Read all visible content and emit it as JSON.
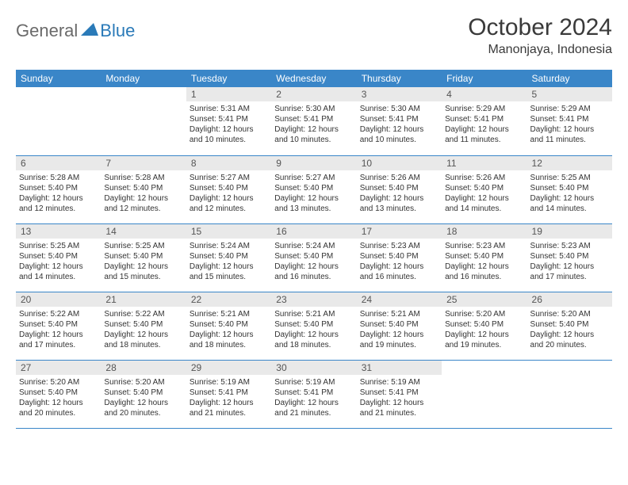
{
  "logo": {
    "general": "General",
    "blue": "Blue"
  },
  "title": "October 2024",
  "location": "Manonjaya, Indonesia",
  "colors": {
    "header_bg": "#3a86c8",
    "header_text": "#ffffff",
    "daynum_bg": "#e9e9e9",
    "row_border": "#3a86c8",
    "logo_gray": "#6a6a6a",
    "logo_blue": "#2a7ab8"
  },
  "weekdays": [
    "Sunday",
    "Monday",
    "Tuesday",
    "Wednesday",
    "Thursday",
    "Friday",
    "Saturday"
  ],
  "weeks": [
    [
      null,
      null,
      {
        "n": "1",
        "sr": "5:31 AM",
        "ss": "5:41 PM",
        "dl": "12 hours and 10 minutes."
      },
      {
        "n": "2",
        "sr": "5:30 AM",
        "ss": "5:41 PM",
        "dl": "12 hours and 10 minutes."
      },
      {
        "n": "3",
        "sr": "5:30 AM",
        "ss": "5:41 PM",
        "dl": "12 hours and 10 minutes."
      },
      {
        "n": "4",
        "sr": "5:29 AM",
        "ss": "5:41 PM",
        "dl": "12 hours and 11 minutes."
      },
      {
        "n": "5",
        "sr": "5:29 AM",
        "ss": "5:41 PM",
        "dl": "12 hours and 11 minutes."
      }
    ],
    [
      {
        "n": "6",
        "sr": "5:28 AM",
        "ss": "5:40 PM",
        "dl": "12 hours and 12 minutes."
      },
      {
        "n": "7",
        "sr": "5:28 AM",
        "ss": "5:40 PM",
        "dl": "12 hours and 12 minutes."
      },
      {
        "n": "8",
        "sr": "5:27 AM",
        "ss": "5:40 PM",
        "dl": "12 hours and 12 minutes."
      },
      {
        "n": "9",
        "sr": "5:27 AM",
        "ss": "5:40 PM",
        "dl": "12 hours and 13 minutes."
      },
      {
        "n": "10",
        "sr": "5:26 AM",
        "ss": "5:40 PM",
        "dl": "12 hours and 13 minutes."
      },
      {
        "n": "11",
        "sr": "5:26 AM",
        "ss": "5:40 PM",
        "dl": "12 hours and 14 minutes."
      },
      {
        "n": "12",
        "sr": "5:25 AM",
        "ss": "5:40 PM",
        "dl": "12 hours and 14 minutes."
      }
    ],
    [
      {
        "n": "13",
        "sr": "5:25 AM",
        "ss": "5:40 PM",
        "dl": "12 hours and 14 minutes."
      },
      {
        "n": "14",
        "sr": "5:25 AM",
        "ss": "5:40 PM",
        "dl": "12 hours and 15 minutes."
      },
      {
        "n": "15",
        "sr": "5:24 AM",
        "ss": "5:40 PM",
        "dl": "12 hours and 15 minutes."
      },
      {
        "n": "16",
        "sr": "5:24 AM",
        "ss": "5:40 PM",
        "dl": "12 hours and 16 minutes."
      },
      {
        "n": "17",
        "sr": "5:23 AM",
        "ss": "5:40 PM",
        "dl": "12 hours and 16 minutes."
      },
      {
        "n": "18",
        "sr": "5:23 AM",
        "ss": "5:40 PM",
        "dl": "12 hours and 16 minutes."
      },
      {
        "n": "19",
        "sr": "5:23 AM",
        "ss": "5:40 PM",
        "dl": "12 hours and 17 minutes."
      }
    ],
    [
      {
        "n": "20",
        "sr": "5:22 AM",
        "ss": "5:40 PM",
        "dl": "12 hours and 17 minutes."
      },
      {
        "n": "21",
        "sr": "5:22 AM",
        "ss": "5:40 PM",
        "dl": "12 hours and 18 minutes."
      },
      {
        "n": "22",
        "sr": "5:21 AM",
        "ss": "5:40 PM",
        "dl": "12 hours and 18 minutes."
      },
      {
        "n": "23",
        "sr": "5:21 AM",
        "ss": "5:40 PM",
        "dl": "12 hours and 18 minutes."
      },
      {
        "n": "24",
        "sr": "5:21 AM",
        "ss": "5:40 PM",
        "dl": "12 hours and 19 minutes."
      },
      {
        "n": "25",
        "sr": "5:20 AM",
        "ss": "5:40 PM",
        "dl": "12 hours and 19 minutes."
      },
      {
        "n": "26",
        "sr": "5:20 AM",
        "ss": "5:40 PM",
        "dl": "12 hours and 20 minutes."
      }
    ],
    [
      {
        "n": "27",
        "sr": "5:20 AM",
        "ss": "5:40 PM",
        "dl": "12 hours and 20 minutes."
      },
      {
        "n": "28",
        "sr": "5:20 AM",
        "ss": "5:40 PM",
        "dl": "12 hours and 20 minutes."
      },
      {
        "n": "29",
        "sr": "5:19 AM",
        "ss": "5:41 PM",
        "dl": "12 hours and 21 minutes."
      },
      {
        "n": "30",
        "sr": "5:19 AM",
        "ss": "5:41 PM",
        "dl": "12 hours and 21 minutes."
      },
      {
        "n": "31",
        "sr": "5:19 AM",
        "ss": "5:41 PM",
        "dl": "12 hours and 21 minutes."
      },
      null,
      null
    ]
  ],
  "labels": {
    "sunrise": "Sunrise:",
    "sunset": "Sunset:",
    "daylight": "Daylight:"
  }
}
